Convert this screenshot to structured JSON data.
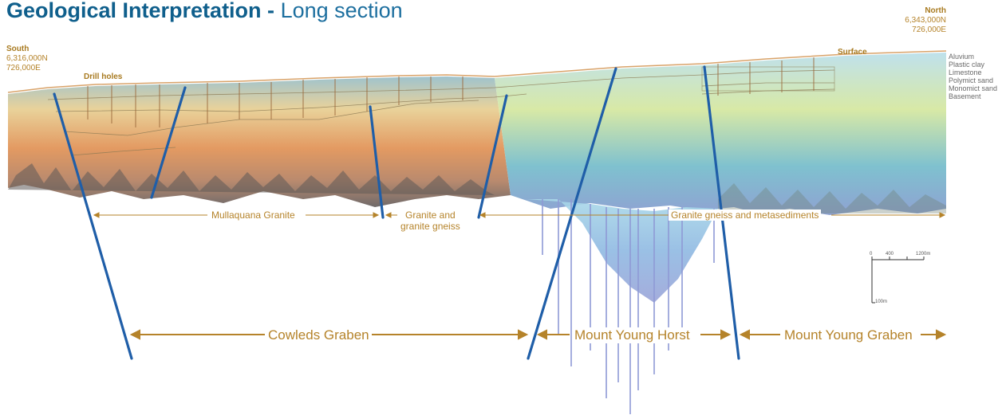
{
  "title": {
    "main": "Geological Interpretation -",
    "sub": "Long section"
  },
  "south": {
    "label": "South",
    "northing": "6,316,000N",
    "easting": "726,000E"
  },
  "north": {
    "label": "North",
    "northing": "6,343,000N",
    "easting": "726,000E"
  },
  "labels": {
    "drill_holes": "Drill holes",
    "surface": "Surface",
    "mullaquana": "Mullaquana Granite",
    "granite_gneiss_1": "Granite and",
    "granite_gneiss_2": "granite gneiss",
    "metasediments": "Granite gneiss and metasediments",
    "cowleds": "Cowleds Graben",
    "horst": "Mount Young Horst",
    "graben": "Mount Young Graben"
  },
  "legend": [
    "Aluvium",
    "Plastic clay",
    "Limestone",
    "Polymict sand",
    "Monomict sand",
    "Basement"
  ],
  "scale": {
    "ticks": [
      "0",
      "400",
      "1200m"
    ],
    "vertical": "100m"
  },
  "colors": {
    "title": "#0f5f8c",
    "accent": "#b5832a",
    "fault": "#1f5ea8"
  }
}
